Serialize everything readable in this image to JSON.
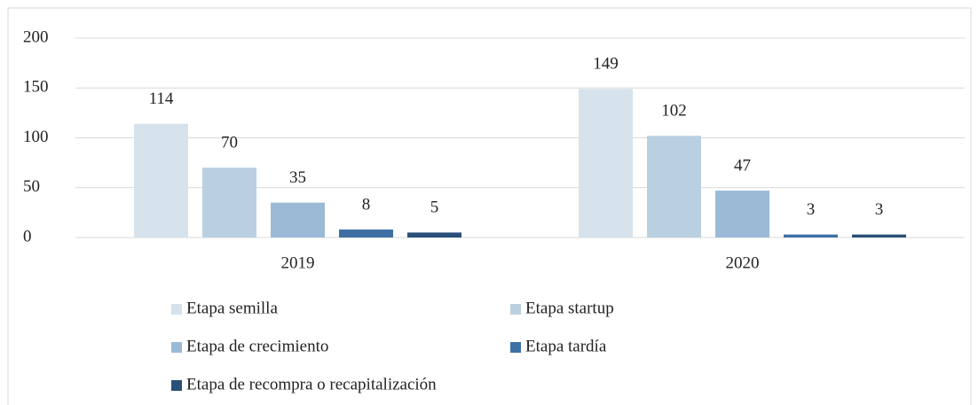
{
  "chart_data": {
    "type": "bar",
    "categories": [
      "2019",
      "2020"
    ],
    "series": [
      {
        "name": "Etapa semilla",
        "color": "#d6e3ec",
        "values": [
          114,
          149
        ]
      },
      {
        "name": "Etapa startup",
        "color": "#b9d0e1",
        "values": [
          70,
          102
        ]
      },
      {
        "name": "Etapa de crecimiento",
        "color": "#9bbad6",
        "values": [
          35,
          47
        ]
      },
      {
        "name": "Etapa tardía",
        "color": "#3e70a5",
        "values": [
          8,
          3
        ]
      },
      {
        "name": "Etapa de recompra o recapitalización",
        "color": "#2a4f7a",
        "values": [
          5,
          3
        ]
      }
    ],
    "ylim": [
      0,
      200
    ],
    "yticks": [
      0,
      50,
      100,
      150,
      200
    ],
    "grid": true,
    "legend": "bottom"
  }
}
